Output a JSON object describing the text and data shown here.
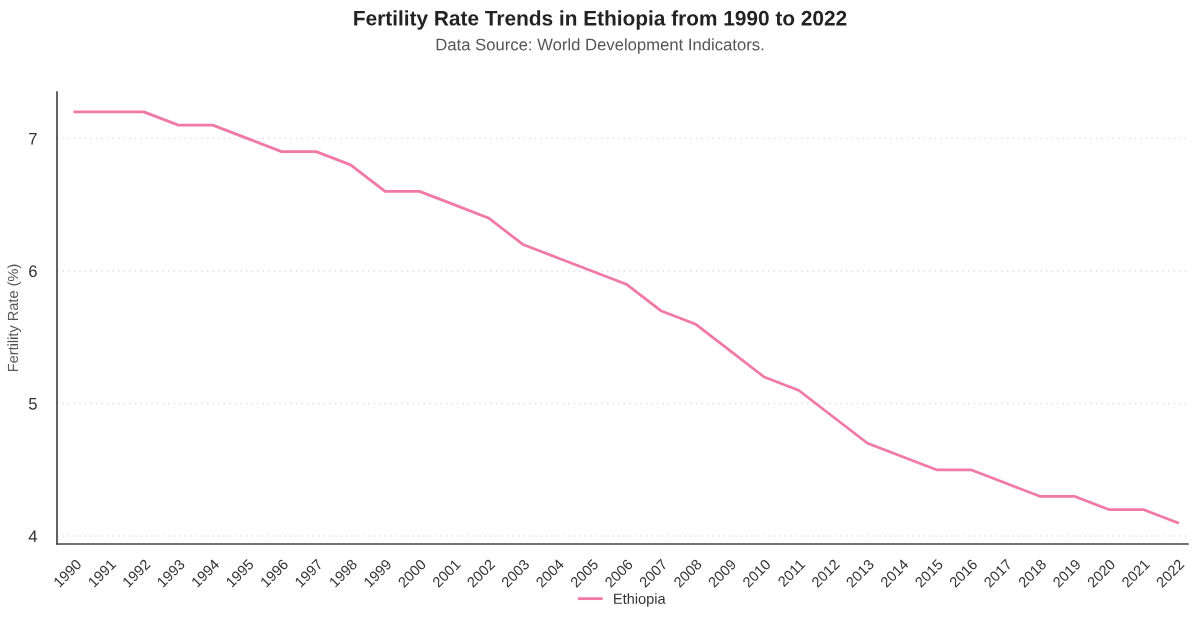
{
  "chart_data": {
    "type": "line",
    "title": "Fertility Rate Trends in Ethiopia from 1990 to 2022",
    "subtitle": "Data Source: World Development Indicators.",
    "ylabel": "Fertility Rate (%)",
    "categories": [
      "1990",
      "1991",
      "1992",
      "1993",
      "1994",
      "1995",
      "1996",
      "1997",
      "1998",
      "1999",
      "2000",
      "2001",
      "2002",
      "2003",
      "2004",
      "2005",
      "2006",
      "2007",
      "2008",
      "2009",
      "2010",
      "2011",
      "2012",
      "2013",
      "2014",
      "2015",
      "2016",
      "2017",
      "2018",
      "2019",
      "2020",
      "2021",
      "2022"
    ],
    "series": [
      {
        "name": "Ethiopia",
        "color": "#f07aa5",
        "values": [
          7.2,
          7.2,
          7.2,
          7.1,
          7.1,
          7.0,
          6.9,
          6.9,
          6.8,
          6.6,
          6.6,
          6.5,
          6.4,
          6.2,
          6.1,
          6.0,
          5.9,
          5.7,
          5.6,
          5.4,
          5.2,
          5.1,
          4.9,
          4.7,
          4.6,
          4.5,
          4.5,
          4.4,
          4.3,
          4.3,
          4.2,
          4.2,
          4.1
        ]
      }
    ],
    "ylim": [
      3.94,
      7.35
    ],
    "yticks": [
      4,
      5,
      6,
      7
    ],
    "grid": "y",
    "legend": "bottom",
    "marker": "none",
    "line_style": "solid"
  }
}
